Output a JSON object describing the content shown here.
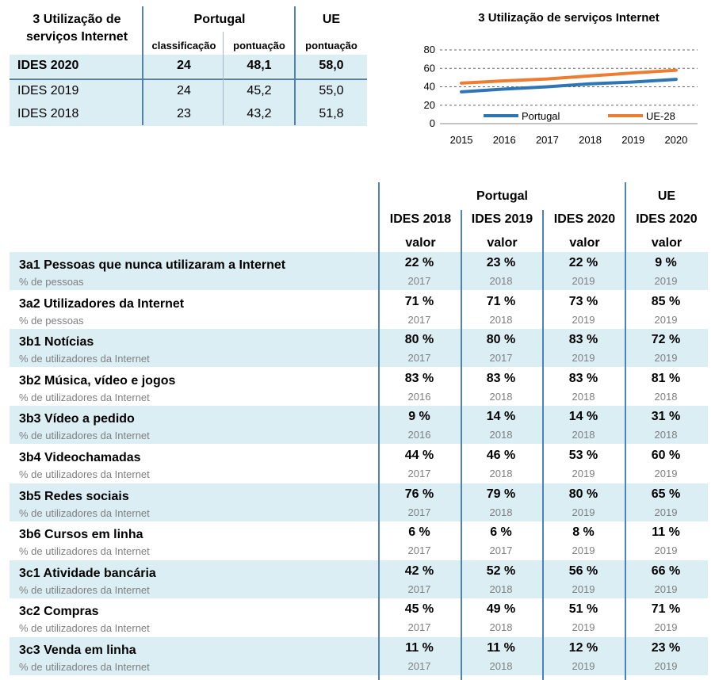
{
  "summary": {
    "title": "3 Utilização de serviços Internet",
    "col_portugal": "Portugal",
    "col_eu": "UE",
    "sub_rank": "classificação",
    "sub_score_pt": "pontuação",
    "sub_score_eu": "pontuação",
    "rows": [
      {
        "label": "IDES 2020",
        "rank": "24",
        "pt": "48,1",
        "eu": "58,0"
      },
      {
        "label": "IDES 2019",
        "rank": "24",
        "pt": "45,2",
        "eu": "55,0"
      },
      {
        "label": "IDES 2018",
        "rank": "23",
        "pt": "43,2",
        "eu": "51,8"
      }
    ]
  },
  "chart_data": {
    "type": "line",
    "title": "3 Utilização de serviços Internet",
    "x": [
      "2015",
      "2016",
      "2017",
      "2018",
      "2019",
      "2020"
    ],
    "yticks": [
      "0",
      "20",
      "40",
      "60",
      "80"
    ],
    "ylim": [
      0,
      80
    ],
    "grid": "horizontal dashed",
    "legend_position": "bottom",
    "series": [
      {
        "name": "Portugal",
        "color": "#2e75b6",
        "values": [
          34.5,
          37.5,
          40.0,
          43.2,
          45.2,
          48.1
        ]
      },
      {
        "name": "UE-28",
        "color": "#ed7d31",
        "values": [
          44.0,
          46.5,
          48.5,
          51.8,
          55.0,
          58.0
        ]
      }
    ]
  },
  "table": {
    "group_portugal": "Portugal",
    "group_eu": "UE",
    "cols": [
      "IDES 2018",
      "IDES 2019",
      "IDES 2020",
      "IDES 2020"
    ],
    "val_label": [
      "valor",
      "valor",
      "valor",
      "valor"
    ],
    "rows": [
      {
        "name": "3a1 Pessoas que nunca utilizaram a Internet",
        "unit": "% de pessoas",
        "v": [
          "22 %",
          "23 %",
          "22 %",
          "9 %"
        ],
        "y": [
          "2017",
          "2018",
          "2019",
          "2019"
        ]
      },
      {
        "name": "3a2 Utilizadores da Internet",
        "unit": "% de pessoas",
        "v": [
          "71 %",
          "71 %",
          "73 %",
          "85 %"
        ],
        "y": [
          "2017",
          "2018",
          "2019",
          "2019"
        ]
      },
      {
        "name": "3b1 Notícias",
        "unit": "% de utilizadores da Internet",
        "v": [
          "80 %",
          "80 %",
          "83 %",
          "72 %"
        ],
        "y": [
          "2017",
          "2017",
          "2019",
          "2019"
        ]
      },
      {
        "name": "3b2 Música, vídeo e jogos",
        "unit": "% de utilizadores da Internet",
        "v": [
          "83 %",
          "83 %",
          "83 %",
          "81 %"
        ],
        "y": [
          "2016",
          "2018",
          "2018",
          "2018"
        ]
      },
      {
        "name": "3b3 Vídeo a pedido",
        "unit": "% de utilizadores da Internet",
        "v": [
          "9 %",
          "14 %",
          "14 %",
          "31 %"
        ],
        "y": [
          "2016",
          "2018",
          "2018",
          "2018"
        ]
      },
      {
        "name": "3b4 Videochamadas",
        "unit": "% de utilizadores da Internet",
        "v": [
          "44 %",
          "46 %",
          "53 %",
          "60 %"
        ],
        "y": [
          "2017",
          "2018",
          "2019",
          "2019"
        ]
      },
      {
        "name": "3b5 Redes sociais",
        "unit": "% de utilizadores da Internet",
        "v": [
          "76 %",
          "79 %",
          "80 %",
          "65 %"
        ],
        "y": [
          "2017",
          "2018",
          "2019",
          "2019"
        ]
      },
      {
        "name": "3b6 Cursos em linha",
        "unit": "% de utilizadores da Internet",
        "v": [
          "6 %",
          "6 %",
          "8 %",
          "11 %"
        ],
        "y": [
          "2017",
          "2017",
          "2019",
          "2019"
        ]
      },
      {
        "name": "3c1 Atividade bancária",
        "unit": "% de utilizadores da Internet",
        "v": [
          "42 %",
          "52 %",
          "56 %",
          "66 %"
        ],
        "y": [
          "2017",
          "2018",
          "2019",
          "2019"
        ]
      },
      {
        "name": "3c2 Compras",
        "unit": "% de utilizadores da Internet",
        "v": [
          "45 %",
          "49 %",
          "51 %",
          "71 %"
        ],
        "y": [
          "2017",
          "2018",
          "2019",
          "2019"
        ]
      },
      {
        "name": "3c3 Venda em linha",
        "unit": "% de utilizadores da Internet",
        "v": [
          "11 %",
          "11 %",
          "12 %",
          "23 %"
        ],
        "y": [
          "2017",
          "2018",
          "2019",
          "2019"
        ]
      }
    ]
  }
}
